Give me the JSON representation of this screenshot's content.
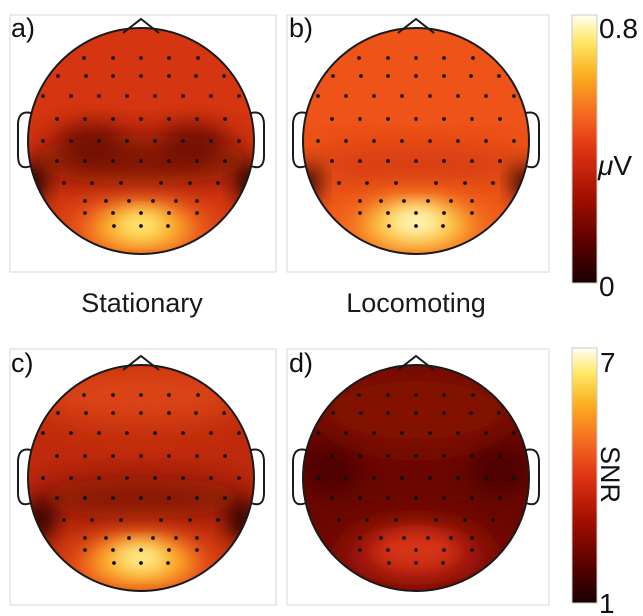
{
  "panels": [
    {
      "label": "a)"
    },
    {
      "label": "b)"
    },
    {
      "label": "c)"
    },
    {
      "label": "d)"
    }
  ],
  "captions": {
    "left": "Stationary",
    "right": "Locomoting"
  },
  "colorbar_top": {
    "max": "0.8",
    "min": "0",
    "unit_symbol": "μ",
    "unit_letter": "V"
  },
  "colorbar_bottom": {
    "max": "7",
    "min": "1",
    "unit": "SNR"
  },
  "colormap": [
    "#1a0000",
    "#5a0000",
    "#a01000",
    "#e03010",
    "#f46020",
    "#fbab20",
    "#fde860",
    "#fffff0"
  ]
}
